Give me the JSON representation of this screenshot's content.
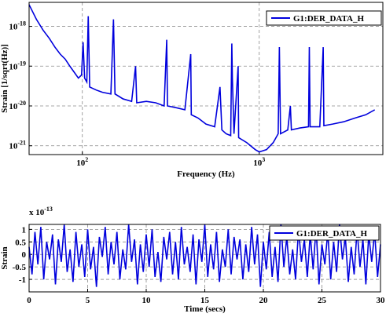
{
  "chart_data": [
    {
      "type": "line",
      "xscale": "log",
      "yscale": "log",
      "grid": true,
      "legend": "upper right",
      "x_label": "Frequency (Hz)",
      "y_label": "Strain [1/sqrt(Hz)]",
      "xlim": [
        50,
        5000
      ],
      "ylim": [
        6e-22,
        4e-18
      ],
      "xticks": [
        {
          "value": 100,
          "label": "10",
          "exponent": "2"
        },
        {
          "value": 1000,
          "label": "10",
          "exponent": "3"
        }
      ],
      "yticks": [
        {
          "value": 1e-21,
          "label": "10",
          "exponent": "-21"
        },
        {
          "value": 1e-20,
          "label": "10",
          "exponent": "-20"
        },
        {
          "value": 1e-19,
          "label": "10",
          "exponent": "-19"
        },
        {
          "value": 1e-18,
          "label": "10",
          "exponent": "-18"
        }
      ],
      "x": [
        50,
        55,
        60,
        65,
        70,
        75,
        80,
        85,
        90,
        95,
        99,
        101,
        103,
        106,
        108,
        110,
        120,
        130,
        145,
        150,
        153,
        170,
        190,
        200,
        203,
        230,
        260,
        290,
        300,
        303,
        340,
        380,
        410,
        413,
        450,
        500,
        560,
        600,
        615,
        650,
        690,
        700,
        705,
        720,
        760,
        765,
        850,
        950,
        1000,
        1100,
        1200,
        1280,
        1300,
        1320,
        1450,
        1500,
        1520,
        1700,
        1900,
        1920,
        1940,
        2200,
        2300,
        2320,
        2600,
        3000,
        3500,
        4000,
        4500
      ],
      "series": [
        {
          "name": "G1:DER_DATA_H",
          "color": "#0000dd",
          "values": [
            3.5e-18,
            1.5e-18,
            8e-19,
            5e-19,
            3e-19,
            2e-19,
            1.5e-19,
            1e-19,
            7e-20,
            5e-20,
            6e-20,
            4e-19,
            5e-20,
            4e-20,
            1.8e-18,
            3e-20,
            2.5e-20,
            2.2e-20,
            2e-20,
            1.5e-18,
            2e-20,
            1.5e-20,
            1.3e-20,
            1e-19,
            1.2e-20,
            1.3e-20,
            1.2e-20,
            1e-20,
            4.6e-19,
            1e-20,
            9e-21,
            8e-21,
            2e-19,
            6e-21,
            5e-21,
            3.5e-21,
            3e-21,
            3e-20,
            2.5e-21,
            2e-21,
            1.8e-21,
            3.7e-19,
            5e-20,
            2e-21,
            1e-19,
            1.6e-21,
            1.2e-21,
            8e-22,
            7e-22,
            8e-22,
            1.2e-21,
            2e-21,
            3e-19,
            2e-21,
            2.5e-21,
            1e-20,
            2.5e-21,
            2.8e-21,
            3e-21,
            3e-19,
            3e-21,
            3e-21,
            3e-19,
            3.2e-21,
            3.5e-21,
            4e-21,
            5e-21,
            6e-21,
            8e-21
          ]
        }
      ]
    },
    {
      "type": "line",
      "grid": true,
      "legend": "upper right",
      "x_label": "Time (secs)",
      "y_label": "Strain",
      "y_multiplier": "x 10",
      "y_multiplier_exponent": "-13",
      "xlim": [
        0,
        30
      ],
      "ylim": [
        -1.5,
        1.2
      ],
      "xticks": [
        0,
        5,
        10,
        15,
        20,
        25,
        30
      ],
      "yticks": [
        -1,
        -0.5,
        0,
        0.5,
        1
      ],
      "x": [
        0,
        0.25,
        0.5,
        0.75,
        1,
        1.25,
        1.5,
        1.75,
        2,
        2.25,
        2.5,
        2.75,
        3,
        3.25,
        3.5,
        3.75,
        4,
        4.25,
        4.5,
        4.75,
        5,
        5.25,
        5.5,
        5.75,
        6,
        6.25,
        6.5,
        6.75,
        7,
        7.25,
        7.5,
        7.75,
        8,
        8.25,
        8.5,
        8.75,
        9,
        9.25,
        9.5,
        9.75,
        10,
        10.25,
        10.5,
        10.75,
        11,
        11.25,
        11.5,
        11.75,
        12,
        12.25,
        12.5,
        12.75,
        13,
        13.25,
        13.5,
        13.75,
        14,
        14.25,
        14.5,
        14.75,
        15,
        15.25,
        15.5,
        15.75,
        16,
        16.25,
        16.5,
        16.75,
        17,
        17.25,
        17.5,
        17.75,
        18,
        18.25,
        18.5,
        18.75,
        19,
        19.25,
        19.5,
        19.75,
        20,
        20.25,
        20.5,
        20.75,
        21,
        21.25,
        21.5,
        21.75,
        22,
        22.25,
        22.5,
        22.75,
        23,
        23.25,
        23.5,
        23.75,
        24,
        24.25,
        24.5,
        24.75,
        25,
        25.25,
        25.5,
        25.75,
        26,
        26.25,
        26.5,
        26.75,
        27,
        27.25,
        27.5,
        27.75,
        28,
        28.25,
        28.5,
        28.75,
        29,
        29.25,
        29.5,
        29.75,
        30
      ],
      "series": [
        {
          "name": "G1:DER_DATA_H",
          "color": "#0000dd",
          "values": [
            0.3,
            -0.8,
            0.9,
            -0.4,
            1.1,
            -1.0,
            0.5,
            -0.2,
            0.8,
            -1.2,
            0.6,
            -0.3,
            1.2,
            -0.7,
            0.2,
            -1.1,
            0.9,
            -0.5,
            0.4,
            -0.9,
            1.0,
            -0.6,
            0.3,
            -1.3,
            0.7,
            -0.1,
            1.1,
            -0.8,
            0.5,
            -0.4,
            0.9,
            -1.0,
            0.2,
            -0.6,
            1.2,
            -0.3,
            0.6,
            -1.2,
            0.4,
            -0.7,
            0.8,
            -0.5,
            1.0,
            -0.9,
            0.1,
            -1.1,
            0.7,
            -0.2,
            0.9,
            -0.8,
            0.5,
            -1.0,
            1.1,
            -0.4,
            0.3,
            -0.7,
            0.8,
            -1.2,
            0.6,
            -0.3,
            1.2,
            -0.9,
            0.4,
            -0.6,
            0.9,
            -1.1,
            0.2,
            -0.5,
            1.0,
            -0.8,
            0.7,
            -0.2,
            0.6,
            -1.0,
            0.4,
            -0.7,
            1.1,
            -0.4,
            0.8,
            -1.3,
            0.5,
            -0.6,
            0.9,
            -0.9,
            0.3,
            -1.1,
            1.2,
            -0.5,
            0.7,
            -0.8,
            0.2,
            -1.0,
            1.0,
            -0.3,
            0.6,
            -0.9,
            0.8,
            -0.6,
            1.1,
            -1.2,
            0.4,
            -0.4,
            0.9,
            -1.0,
            0.5,
            -0.7,
            1.2,
            -0.2,
            0.7,
            -1.1,
            0.3,
            -0.8,
            1.0,
            -0.5,
            0.6,
            -1.2,
            0.8,
            -0.3,
            0.9,
            -0.9,
            0.4
          ]
        }
      ]
    }
  ]
}
